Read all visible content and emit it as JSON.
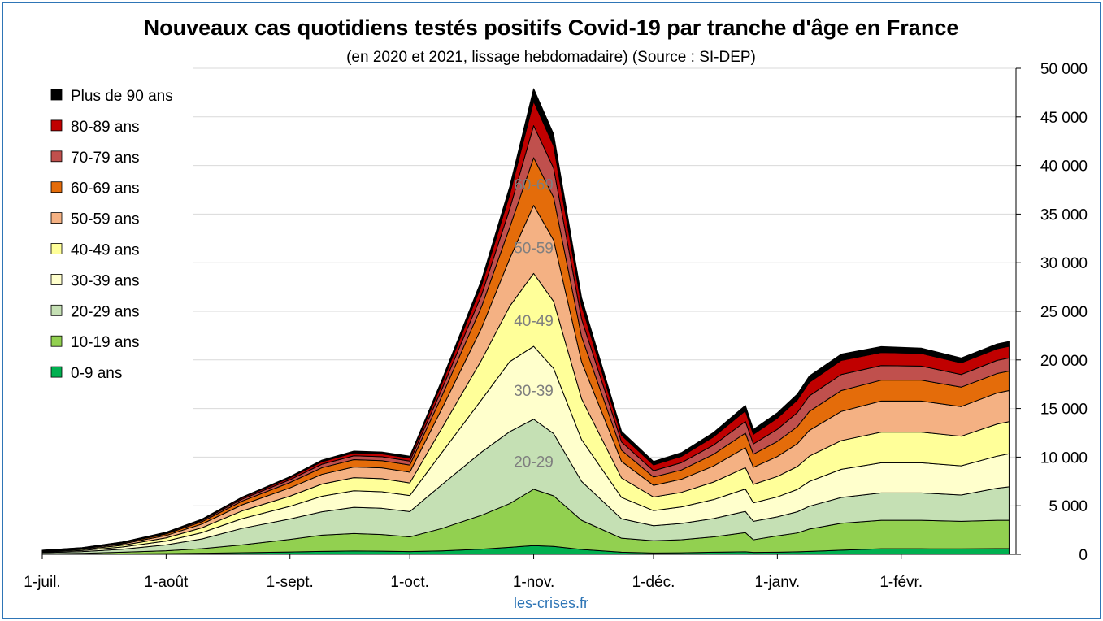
{
  "chart_data": {
    "type": "area",
    "stacked": true,
    "title": "Nouveaux cas quotidiens testés positifs Covid-19 par tranche d'âge en France",
    "subtitle": "(en 2020 et 2021, lissage hebdomadaire) (Source : SI-DEP)",
    "source": "les-crises.fr",
    "y_axis_position": "right",
    "ylim": [
      0,
      50000
    ],
    "y_ticks": [
      "0",
      "5 000",
      "10 000",
      "15 000",
      "20 000",
      "25 000",
      "30 000",
      "35 000",
      "40 000",
      "45 000",
      "50 000"
    ],
    "x_tick_labels": [
      "1-juil.",
      "1-août",
      "1-sept.",
      "1-oct.",
      "1-nov.",
      "1-déc.",
      "1-janv.",
      "1-févr."
    ],
    "x_tick_days": [
      0,
      31,
      62,
      92,
      123,
      153,
      184,
      215
    ],
    "x_days": [
      0,
      10,
      20,
      31,
      40,
      50,
      62,
      70,
      78,
      85,
      92,
      100,
      110,
      117,
      123,
      128,
      135,
      145,
      153,
      160,
      168,
      176,
      178,
      184,
      189,
      192,
      200,
      210,
      220,
      230,
      239,
      242
    ],
    "legend_position": "top-left",
    "grid": true,
    "series": [
      {
        "name": "0-9 ans",
        "color": "#00b050",
        "values": [
          10,
          20,
          40,
          70,
          110,
          170,
          240,
          300,
          340,
          320,
          280,
          360,
          530,
          720,
          900,
          820,
          500,
          220,
          140,
          160,
          220,
          260,
          200,
          220,
          260,
          300,
          430,
          570,
          570,
          560,
          590,
          590
        ]
      },
      {
        "name": "10-19 ans",
        "color": "#92d050",
        "values": [
          40,
          80,
          180,
          300,
          480,
          800,
          1300,
          1680,
          1800,
          1720,
          1520,
          2300,
          3500,
          4500,
          5800,
          5200,
          3000,
          1440,
          1260,
          1340,
          1580,
          1980,
          1300,
          1680,
          1940,
          2300,
          2770,
          2930,
          2930,
          2840,
          2910,
          2910
        ]
      },
      {
        "name": "20-29 ans",
        "color": "#c5e0b4",
        "values": [
          120,
          180,
          300,
          600,
          1000,
          1700,
          2100,
          2400,
          2700,
          2700,
          2600,
          4500,
          6500,
          7400,
          7200,
          6400,
          4000,
          2000,
          1550,
          1680,
          1880,
          2180,
          1900,
          1960,
          2180,
          2350,
          2650,
          2820,
          2820,
          2700,
          3300,
          3450
        ]
      },
      {
        "name": "30-39 ans",
        "color": "#ffffcc",
        "values": [
          70,
          120,
          230,
          400,
          650,
          1000,
          1300,
          1600,
          1700,
          1700,
          1650,
          3300,
          5400,
          7200,
          7500,
          6700,
          4300,
          2200,
          1550,
          1700,
          1950,
          2300,
          1900,
          2050,
          2300,
          2550,
          2900,
          3100,
          3100,
          3000,
          3300,
          3400
        ]
      },
      {
        "name": "40-49 ans",
        "color": "#ffff99",
        "values": [
          60,
          100,
          180,
          320,
          500,
          800,
          1050,
          1250,
          1350,
          1350,
          1300,
          2500,
          4100,
          5700,
          7500,
          6900,
          4200,
          2000,
          1400,
          1500,
          1800,
          2200,
          1900,
          2100,
          2350,
          2600,
          2950,
          3150,
          3150,
          3050,
          3300,
          3300
        ]
      },
      {
        "name": "50-59 ans",
        "color": "#f4b183",
        "values": [
          50,
          80,
          140,
          250,
          380,
          620,
          850,
          1000,
          1100,
          1100,
          1100,
          2000,
          3300,
          4900,
          7000,
          6300,
          3800,
          1700,
          1200,
          1350,
          1650,
          2050,
          1750,
          2050,
          2350,
          2650,
          3000,
          3200,
          3200,
          3050,
          3200,
          3200
        ]
      },
      {
        "name": "60-69 ans",
        "color": "#e46c0a",
        "values": [
          30,
          50,
          90,
          160,
          240,
          380,
          550,
          680,
          750,
          750,
          740,
          1300,
          2200,
          3200,
          4900,
          4400,
          2600,
          1150,
          850,
          950,
          1200,
          1500,
          1350,
          1550,
          1750,
          1950,
          2150,
          2150,
          2150,
          2000,
          2000,
          2000
        ]
      },
      {
        "name": "70-79 ans",
        "color": "#c0504d",
        "values": [
          20,
          30,
          50,
          90,
          130,
          200,
          290,
          360,
          400,
          400,
          400,
          700,
          1200,
          1900,
          3300,
          3000,
          1800,
          850,
          650,
          750,
          950,
          1200,
          1050,
          1250,
          1450,
          1600,
          1650,
          1500,
          1450,
          1300,
          1350,
          1350
        ]
      },
      {
        "name": "80-89 ans",
        "color": "#c00000",
        "values": [
          15,
          20,
          40,
          60,
          90,
          140,
          200,
          260,
          300,
          300,
          320,
          600,
          1000,
          1500,
          2500,
          2300,
          1400,
          700,
          600,
          650,
          850,
          1100,
          1000,
          1150,
          1300,
          1400,
          1450,
          1350,
          1300,
          1200,
          1200,
          1200
        ]
      },
      {
        "name": "Plus de 90 ans",
        "color": "#000000",
        "values": [
          5,
          10,
          20,
          30,
          50,
          80,
          120,
          160,
          180,
          180,
          190,
          350,
          550,
          800,
          1300,
          1200,
          800,
          400,
          350,
          380,
          450,
          550,
          500,
          550,
          600,
          650,
          650,
          600,
          550,
          500,
          500,
          500
        ]
      }
    ],
    "inline_labels": [
      {
        "text": "60-69",
        "x_day": 123,
        "y": 38000
      },
      {
        "text": "50-59",
        "x_day": 123,
        "y": 31500
      },
      {
        "text": "40-49",
        "x_day": 123,
        "y": 24000
      },
      {
        "text": "30-39",
        "x_day": 123,
        "y": 16800
      },
      {
        "text": "20-29",
        "x_day": 123,
        "y": 9500
      }
    ]
  }
}
